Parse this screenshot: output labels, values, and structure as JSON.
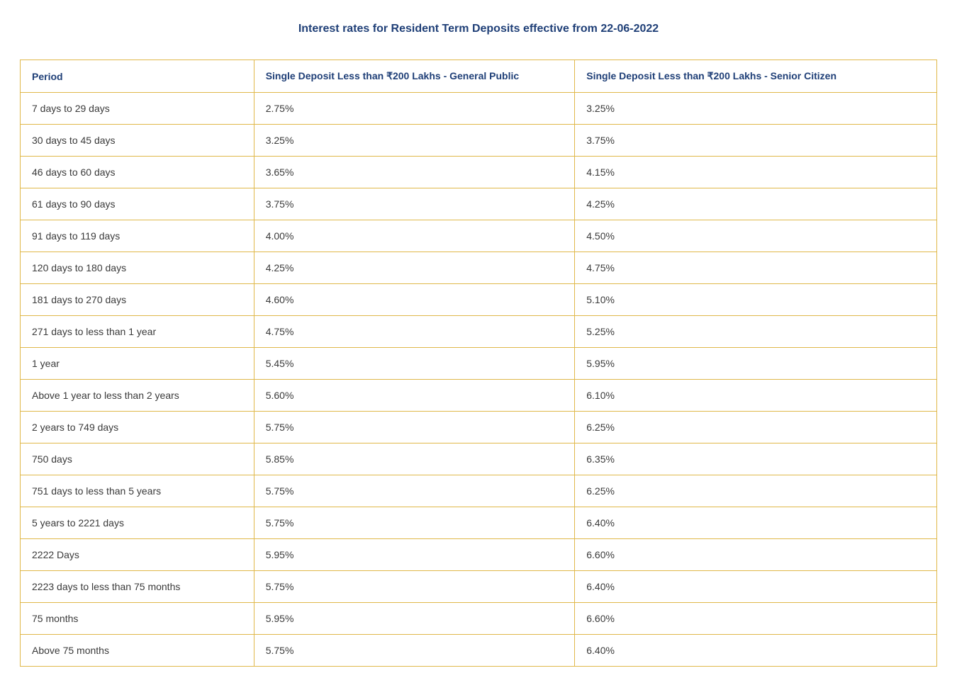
{
  "title": "Interest rates for Resident Term Deposits effective from 22-06-2022",
  "table": {
    "border_color": "#e0b84a",
    "header_text_color": "#1f3f77",
    "body_text_color": "#3a3a3a",
    "background_color": "#ffffff",
    "font_family": "Segoe UI, Arial, sans-serif",
    "header_fontsize": 14,
    "body_fontsize": 14,
    "cell_padding_y": 14,
    "cell_padding_x": 16,
    "column_widths_pct": [
      25.5,
      35,
      39.5
    ],
    "columns": [
      "Period",
      "Single Deposit Less than ₹200 Lakhs - General Public",
      "Single Deposit Less than ₹200 Lakhs - Senior Citizen"
    ],
    "rows": [
      [
        "7 days to 29 days",
        "2.75%",
        "3.25%"
      ],
      [
        "30 days to 45 days",
        "3.25%",
        "3.75%"
      ],
      [
        "46 days to 60 days",
        "3.65%",
        "4.15%"
      ],
      [
        "61 days to 90 days",
        "3.75%",
        "4.25%"
      ],
      [
        "91 days to 119 days",
        "4.00%",
        "4.50%"
      ],
      [
        "120 days to 180 days",
        "4.25%",
        "4.75%"
      ],
      [
        "181 days to 270 days",
        "4.60%",
        "5.10%"
      ],
      [
        "271 days to less than 1 year",
        "4.75%",
        "5.25%"
      ],
      [
        "1 year",
        "5.45%",
        "5.95%"
      ],
      [
        "Above 1 year to less than 2 years",
        "5.60%",
        "6.10%"
      ],
      [
        "2 years to 749 days",
        "5.75%",
        "6.25%"
      ],
      [
        "750 days",
        "5.85%",
        "6.35%"
      ],
      [
        "751 days to less than 5 years",
        "5.75%",
        "6.25%"
      ],
      [
        "5 years to 2221 days",
        "5.75%",
        "6.40%"
      ],
      [
        "2222 Days",
        "5.95%",
        "6.60%"
      ],
      [
        "2223 days to less than 75 months",
        "5.75%",
        "6.40%"
      ],
      [
        "75 months",
        "5.95%",
        "6.60%"
      ],
      [
        "Above 75 months",
        "5.75%",
        "6.40%"
      ]
    ]
  }
}
